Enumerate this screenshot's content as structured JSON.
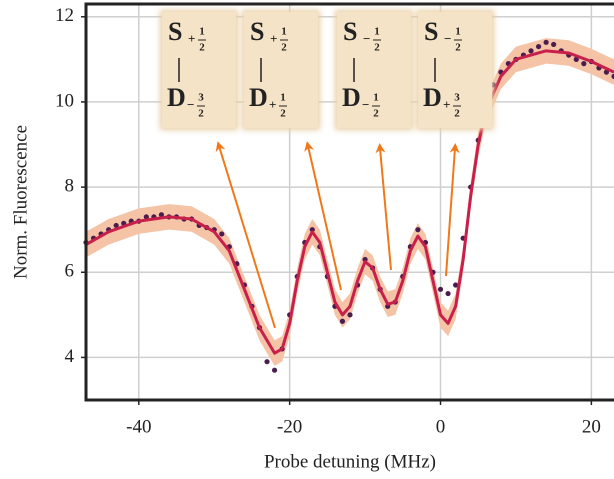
{
  "chart_data": {
    "type": "scatter",
    "xlabel": "Probe detuning (MHz)",
    "ylabel": "Norm. Fluorescence",
    "xlim": [
      -47,
      23
    ],
    "ylim": [
      3,
      12.3
    ],
    "xticks": [
      -40,
      -20,
      0,
      20
    ],
    "yticks": [
      4,
      6,
      8,
      10,
      12
    ],
    "grid": true,
    "color": "#4b1d4f",
    "x": [
      -47,
      -46,
      -45,
      -44,
      -43,
      -42,
      -41,
      -40,
      -39,
      -38,
      -37,
      -36,
      -35,
      -34,
      -33,
      -32,
      -31,
      -30,
      -29,
      -28,
      -27,
      -26,
      -25,
      -24,
      -23,
      -22,
      -21,
      -20,
      -19,
      -18,
      -17,
      -16,
      -15,
      -14,
      -13,
      -12,
      -11,
      -10,
      -9,
      -8,
      -7,
      -6,
      -5,
      -4,
      -3,
      -2,
      -1,
      0,
      1,
      2,
      3,
      4,
      5,
      6,
      7,
      8,
      9,
      10,
      11,
      12,
      13,
      14,
      15,
      16,
      17,
      18,
      19,
      20,
      21,
      22,
      23
    ],
    "values": [
      6.7,
      6.8,
      6.9,
      7.0,
      7.1,
      7.15,
      7.2,
      7.2,
      7.3,
      7.3,
      7.35,
      7.3,
      7.3,
      7.25,
      7.25,
      7.1,
      7.05,
      7.0,
      6.9,
      6.6,
      6.2,
      5.7,
      5.2,
      4.7,
      3.9,
      3.7,
      4.2,
      5.0,
      5.9,
      6.7,
      7.0,
      6.6,
      5.9,
      5.2,
      4.85,
      5.0,
      5.7,
      6.3,
      6.1,
      5.6,
      5.2,
      5.3,
      5.9,
      6.6,
      7.0,
      6.7,
      6.0,
      5.6,
      5.5,
      5.7,
      6.8,
      8.0,
      9.1,
      9.9,
      10.4,
      10.7,
      10.9,
      11.0,
      11.1,
      11.2,
      11.3,
      11.4,
      11.35,
      11.2,
      11.1,
      11.0,
      10.9,
      10.95,
      10.8,
      10.7,
      10.6
    ],
    "fit": {
      "color": "#c8204a",
      "band_color": "#f5c3a6",
      "band": 0.3,
      "x": [
        -47,
        -44,
        -40,
        -36,
        -33,
        -30,
        -28,
        -26,
        -24,
        -22,
        -21,
        -20,
        -19,
        -18,
        -17,
        -16,
        -15,
        -14,
        -13,
        -12,
        -11,
        -10,
        -9,
        -8,
        -7,
        -6,
        -5,
        -4,
        -3,
        -2,
        -1,
        0,
        1,
        2,
        3,
        4,
        5,
        6,
        8,
        10,
        14,
        17,
        20,
        23
      ],
      "values": [
        6.65,
        6.95,
        7.2,
        7.3,
        7.25,
        6.95,
        6.5,
        5.6,
        4.7,
        4.1,
        4.2,
        4.8,
        5.8,
        6.6,
        6.95,
        6.7,
        6.0,
        5.3,
        5.0,
        5.2,
        5.8,
        6.25,
        6.1,
        5.6,
        5.25,
        5.3,
        5.8,
        6.5,
        6.85,
        6.6,
        5.8,
        5.0,
        4.8,
        5.2,
        6.3,
        7.8,
        9.0,
        9.8,
        10.6,
        11.0,
        11.2,
        11.15,
        10.95,
        10.7
      ]
    },
    "annotations": [
      {
        "upper": {
          "letter": "S",
          "sign": "+",
          "num": "1",
          "den": "2"
        },
        "lower": {
          "letter": "D",
          "sign": "−",
          "num": "3",
          "den": "2"
        }
      },
      {
        "upper": {
          "letter": "S",
          "sign": "+",
          "num": "1",
          "den": "2"
        },
        "lower": {
          "letter": "D",
          "sign": "+",
          "num": "1",
          "den": "2"
        }
      },
      {
        "upper": {
          "letter": "S",
          "sign": "−",
          "num": "1",
          "den": "2"
        },
        "lower": {
          "letter": "D",
          "sign": "−",
          "num": "1",
          "den": "2"
        }
      },
      {
        "upper": {
          "letter": "S",
          "sign": "−",
          "num": "1",
          "den": "2"
        },
        "lower": {
          "letter": "D",
          "sign": "+",
          "num": "3",
          "den": "2"
        }
      }
    ]
  }
}
